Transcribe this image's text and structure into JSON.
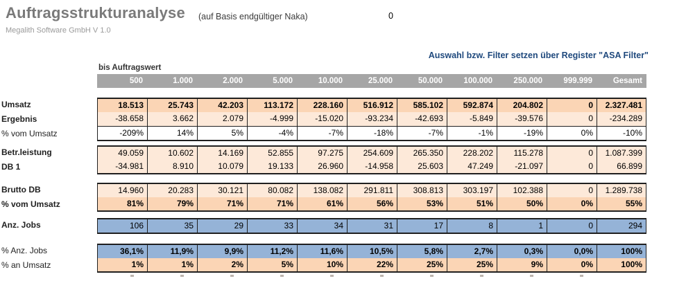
{
  "header": {
    "title": "Auftragsstrukturanalyse",
    "subtitle": "(auf Basis endgültiger Naka)",
    "selected_cell_value": "0",
    "vendor": "Megalith Software GmbH V 1.0",
    "filter_hint": "Auswahl bzw. Filter setzen über Register \"ASA Filter\""
  },
  "colors": {
    "accent_blue_text": "#1f497d",
    "header_bar": "#a6a6a6",
    "row_orange": "#fbd5b5",
    "row_peach": "#fde9d9",
    "row_blue": "#95b3d7",
    "title_gray": "#7a7a7a"
  },
  "table": {
    "col_group_label": "bis Auftragswert",
    "columns": [
      "500",
      "1.000",
      "2.000",
      "5.000",
      "10.000",
      "25.000",
      "50.000",
      "100.000",
      "250.000",
      "999.999",
      "Gesamt"
    ],
    "groups": [
      {
        "rows": [
          {
            "label": "Umsatz",
            "bold_label": true,
            "bold_values": true,
            "fill": "orange",
            "values": [
              "18.513",
              "25.743",
              "42.203",
              "113.172",
              "228.160",
              "516.912",
              "585.102",
              "592.874",
              "204.802",
              "0",
              "2.327.481"
            ]
          },
          {
            "label": "Ergebnis",
            "bold_label": true,
            "bold_values": false,
            "fill": "peach",
            "values": [
              "-38.658",
              "3.662",
              "2.079",
              "-4.999",
              "-15.020",
              "-93.234",
              "-42.693",
              "-5.849",
              "-39.576",
              "0",
              "-234.289"
            ]
          },
          {
            "label": "% vom Umsatz",
            "bold_label": false,
            "bold_values": false,
            "fill": "white",
            "values": [
              "-209%",
              "14%",
              "5%",
              "-4%",
              "-7%",
              "-18%",
              "-7%",
              "-1%",
              "-19%",
              "0%",
              "-10%"
            ]
          }
        ]
      },
      {
        "rows": [
          {
            "label": "Betr.leistung",
            "bold_label": true,
            "bold_values": false,
            "fill": "peach",
            "values": [
              "49.059",
              "10.602",
              "14.169",
              "52.855",
              "97.275",
              "254.609",
              "265.350",
              "228.202",
              "115.278",
              "0",
              "1.087.399"
            ]
          },
          {
            "label": "DB 1",
            "bold_label": true,
            "bold_values": false,
            "fill": "peach",
            "values": [
              "-34.981",
              "8.910",
              "10.079",
              "19.133",
              "26.960",
              "-14.958",
              "25.603",
              "47.249",
              "-21.097",
              "0",
              "66.899"
            ]
          }
        ]
      },
      {
        "rows": [
          {
            "label": "Brutto DB",
            "bold_label": true,
            "bold_values": false,
            "fill": "peach",
            "values": [
              "14.960",
              "20.283",
              "30.121",
              "80.082",
              "138.082",
              "291.811",
              "308.813",
              "303.197",
              "102.388",
              "0",
              "1.289.738"
            ]
          },
          {
            "label": "% vom Umsatz",
            "bold_label": true,
            "bold_values": true,
            "fill": "orange",
            "values": [
              "81%",
              "79%",
              "71%",
              "71%",
              "61%",
              "56%",
              "53%",
              "51%",
              "50%",
              "0%",
              "55%"
            ]
          }
        ]
      },
      {
        "rows": [
          {
            "label": "Anz. Jobs",
            "bold_label": true,
            "bold_values": false,
            "fill": "blue",
            "values": [
              "106",
              "35",
              "29",
              "33",
              "34",
              "31",
              "17",
              "8",
              "1",
              "0",
              "294"
            ]
          }
        ]
      },
      {
        "rows": [
          {
            "label": "% Anz. Jobs",
            "bold_label": false,
            "bold_values": true,
            "fill": "blue",
            "values": [
              "36,1%",
              "11,9%",
              "9,9%",
              "11,2%",
              "11,6%",
              "10,5%",
              "5,8%",
              "2,7%",
              "0,3%",
              "0,0%",
              "100%"
            ]
          },
          {
            "label": "% an Umsatz",
            "bold_label": false,
            "bold_values": true,
            "fill": "orange",
            "values": [
              "1%",
              "1%",
              "2%",
              "5%",
              "10%",
              "22%",
              "25%",
              "25%",
              "9%",
              "0%",
              "100%"
            ]
          }
        ]
      }
    ]
  }
}
